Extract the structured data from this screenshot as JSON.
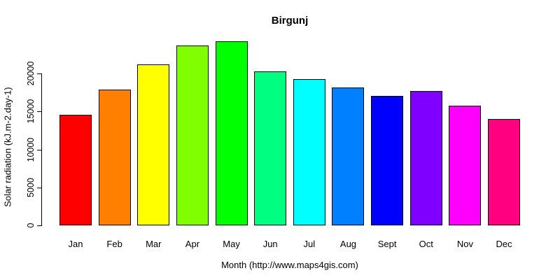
{
  "chart_data": {
    "type": "bar",
    "title": "Birgunj",
    "categories": [
      "Jan",
      "Feb",
      "Mar",
      "Apr",
      "May",
      "Jun",
      "Jul",
      "Aug",
      "Sept",
      "Oct",
      "Nov",
      "Dec"
    ],
    "values": [
      14600,
      17900,
      21200,
      23700,
      24200,
      20250,
      19300,
      18150,
      17050,
      17700,
      15800,
      14050
    ],
    "bar_colors": [
      "#FF0000",
      "#FF8000",
      "#FFFF00",
      "#80FF00",
      "#00FF00",
      "#00FF80",
      "#00FFFF",
      "#0080FF",
      "#0000FF",
      "#8000FF",
      "#FF00FF",
      "#FF0080"
    ],
    "bar_border_color": "#000000",
    "xlabel": "Month (http://www.maps4gis.com)",
    "ylabel": "Solar radiation (kJ.m-2.day-1)",
    "yticks": [
      0,
      5000,
      10000,
      15000,
      20000
    ],
    "ylim": [
      0,
      24500
    ],
    "grid": false,
    "legend": null,
    "background": "#FFFFFF",
    "text_color": "#000000"
  }
}
